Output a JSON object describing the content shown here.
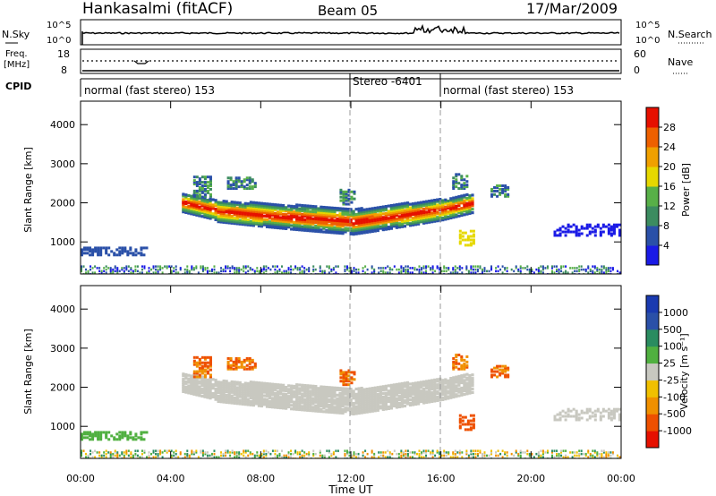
{
  "header": {
    "station": "Hankasalmi (fitACF)",
    "beam": "Beam 05",
    "date": "17/Mar/2009"
  },
  "noise_panel": {
    "left_label": "N.Sky",
    "right_label": "N.Search",
    "left_ticks": [
      "10^5",
      "10^0"
    ],
    "right_ticks": [
      "10^5",
      "10^0"
    ]
  },
  "freq_panel": {
    "left_label_1": "Freq.",
    "left_label_2": "[MHz]",
    "right_label": "Nave",
    "left_ticks": [
      "18",
      "8"
    ],
    "right_ticks": [
      "60",
      "0"
    ]
  },
  "cpid_panel": {
    "label": "CPID",
    "segments": [
      {
        "text": "normal (fast stereo) 153",
        "start": "00:00",
        "end": "12:00"
      },
      {
        "text": "Stereo -6401",
        "start": "12:00",
        "end": "16:00"
      },
      {
        "text": "normal (fast stereo) 153",
        "start": "16:00",
        "end": "24:00"
      }
    ]
  },
  "colors": {
    "power_scale": [
      "#1a1ae6",
      "#2a50a8",
      "#3c8c60",
      "#58b048",
      "#e6d800",
      "#f0a000",
      "#ee6000",
      "#e61000"
    ],
    "velocity_scale": [
      "#e61000",
      "#ee5000",
      "#f09000",
      "#f0c000",
      "#c8c8c0",
      "#50b040",
      "#2a8c60",
      "#2a50a8",
      "#1a3ab0"
    ]
  },
  "chart_data": [
    {
      "type": "heatmap",
      "panel": "power",
      "xlabel": "",
      "ylabel": "Slant Range [km]",
      "x_ticks": [
        "00:00",
        "04:00",
        "08:00",
        "12:00",
        "16:00",
        "20:00",
        "00:00"
      ],
      "y_ticks": [
        "1000",
        "2000",
        "3000",
        "4000"
      ],
      "xlim": [
        0,
        24
      ],
      "ylim": [
        180,
        4600
      ],
      "colorbar": {
        "label": "Power [dB]",
        "ticks": [
          "4",
          "8",
          "12",
          "16",
          "20",
          "24",
          "28"
        ],
        "range": [
          0,
          32
        ]
      },
      "features": [
        {
          "name": "main echo band",
          "t_start": 4.5,
          "t_end": 17.5,
          "range_center_km": 1550,
          "peak_db": 30
        },
        {
          "name": "upper patches",
          "t_start": 4.5,
          "t_end": 19.0,
          "range_center_km": 2400,
          "peak_db": 14
        },
        {
          "name": "near-range scatter",
          "t_start": 0.0,
          "t_end": 3.0,
          "range_center_km": 800,
          "peak_db": 6
        },
        {
          "name": "late evening echoes",
          "t_start": 21.0,
          "t_end": 24.0,
          "range_center_km": 1300,
          "peak_db": 6
        },
        {
          "name": "ground clutter",
          "t_start": 0.0,
          "t_end": 24.0,
          "range_center_km": 300,
          "peak_db": 6
        }
      ]
    },
    {
      "type": "heatmap",
      "panel": "velocity",
      "xlabel": "Time UT",
      "ylabel": "Slant Range [km]",
      "x_ticks": [
        "00:00",
        "04:00",
        "08:00",
        "12:00",
        "16:00",
        "20:00",
        "00:00"
      ],
      "y_ticks": [
        "1000",
        "2000",
        "3000",
        "4000"
      ],
      "xlim": [
        0,
        24
      ],
      "ylim": [
        180,
        4600
      ],
      "colorbar": {
        "label": "Velocity [m s⁻¹]",
        "ticks": [
          "1000",
          "500",
          "100",
          "25",
          "-25",
          "-100",
          "-500",
          "-1000"
        ]
      },
      "features": [
        {
          "name": "main echo band (near-zero velocity)",
          "t_start": 4.5,
          "t_end": 17.5,
          "range_center_km": 1700,
          "velocity_ms": 0
        },
        {
          "name": "upper negative patches",
          "t_start": 5.0,
          "t_end": 8.0,
          "range_center_km": 2600,
          "velocity_ms": -300
        },
        {
          "name": "strong negative patch",
          "t_start": 16.8,
          "t_end": 17.5,
          "range_center_km": 1200,
          "velocity_ms": -500
        }
      ]
    }
  ]
}
